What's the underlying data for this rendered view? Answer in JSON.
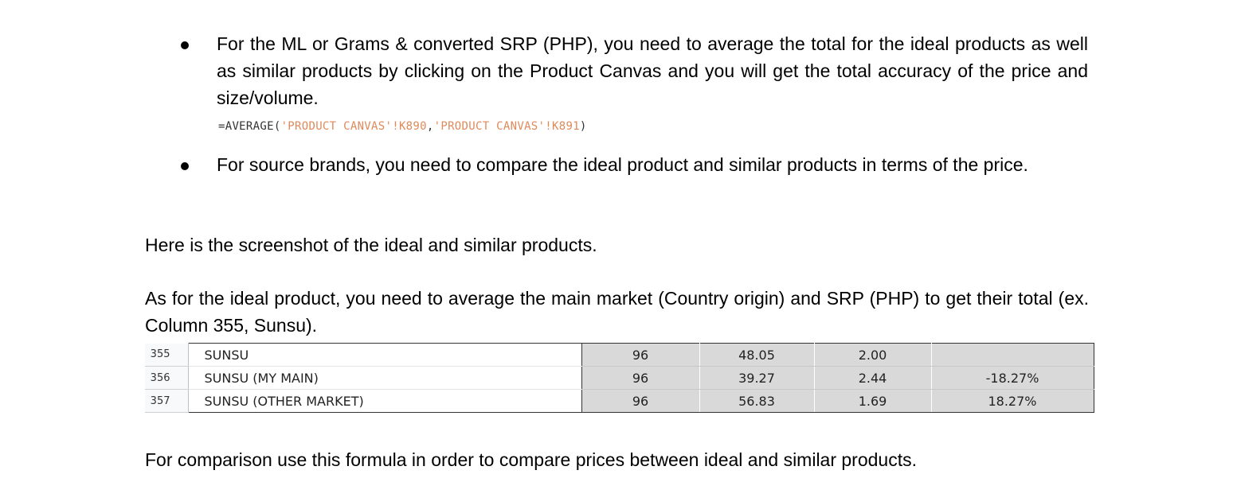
{
  "bullets": [
    "For the ML or Grams & converted SRP (PHP), you need to average the total for the ideal products as well as similar products by clicking on the Product Canvas and you will get the total accuracy of the price and size/volume.",
    "For source brands, you need to compare the ideal product and similar products in terms of the price."
  ],
  "formula": {
    "prefix": "=AVERAGE(",
    "ref1": "'PRODUCT CANVAS'!K890",
    "sep": ",",
    "ref2": "'PRODUCT CANVAS'!K891",
    "suffix": ")"
  },
  "paragraphs": {
    "screenshot_intro": "Here is the screenshot of the ideal and similar products.",
    "ideal_product": "As for the ideal product, you need to average the main market (Country origin) and SRP (PHP) to get their total (ex. Column 355, Sunsu).",
    "comparison": "For comparison use this formula in order to compare prices between ideal and similar products."
  },
  "table": {
    "rows": [
      {
        "row": "355",
        "name": "SUNSU",
        "c1": "96",
        "c2": "48.05",
        "c3": "2.00",
        "c4": ""
      },
      {
        "row": "356",
        "name": "SUNSU (MY MAIN)",
        "c1": "96",
        "c2": "39.27",
        "c3": "2.44",
        "c4": "-18.27%"
      },
      {
        "row": "357",
        "name": "SUNSU (OTHER MARKET)",
        "c1": "96",
        "c2": "56.83",
        "c3": "1.69",
        "c4": "18.27%"
      }
    ]
  }
}
